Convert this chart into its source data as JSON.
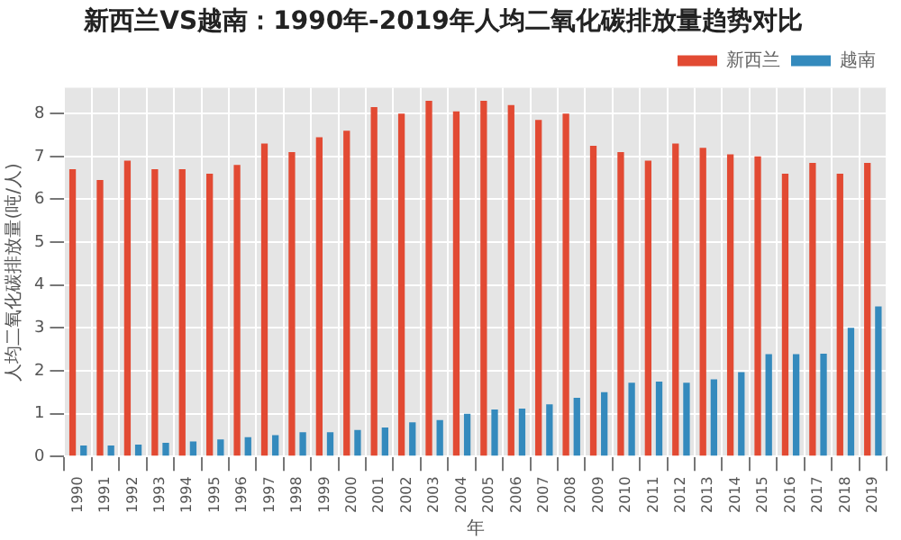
{
  "chart_data": {
    "type": "bar",
    "title": "新西兰VS越南：1990年-2019年人均二氧化碳排放量趋势对比",
    "xlabel": "年",
    "ylabel": "人均二氧化碳排放量(吨/人)",
    "categories": [
      "1990",
      "1991",
      "1992",
      "1993",
      "1994",
      "1995",
      "1996",
      "1997",
      "1998",
      "1999",
      "2000",
      "2001",
      "2002",
      "2003",
      "2004",
      "2005",
      "2006",
      "2007",
      "2008",
      "2009",
      "2010",
      "2011",
      "2012",
      "2013",
      "2014",
      "2015",
      "2016",
      "2017",
      "2018",
      "2019"
    ],
    "series": [
      {
        "name": "新西兰",
        "color": "#e24a33",
        "values": [
          6.7,
          6.45,
          6.9,
          6.7,
          6.7,
          6.6,
          6.8,
          7.3,
          7.1,
          7.45,
          7.6,
          8.15,
          8.0,
          8.3,
          8.05,
          8.3,
          8.2,
          7.85,
          8.0,
          7.25,
          7.1,
          6.9,
          7.3,
          7.2,
          7.05,
          7.0,
          6.6,
          6.85,
          6.6,
          6.85
        ]
      },
      {
        "name": "越南",
        "color": "#348abd",
        "values": [
          0.26,
          0.26,
          0.28,
          0.32,
          0.35,
          0.4,
          0.45,
          0.5,
          0.57,
          0.57,
          0.62,
          0.68,
          0.8,
          0.85,
          1.0,
          1.1,
          1.12,
          1.22,
          1.37,
          1.5,
          1.72,
          1.75,
          1.72,
          1.8,
          1.97,
          2.39,
          2.39,
          2.4,
          3.0,
          3.5
        ]
      }
    ],
    "ylim": [
      0,
      8.6
    ],
    "yticks": [
      0,
      1,
      2,
      3,
      4,
      5,
      6,
      7,
      8
    ],
    "grid": true,
    "legend": "top right"
  }
}
